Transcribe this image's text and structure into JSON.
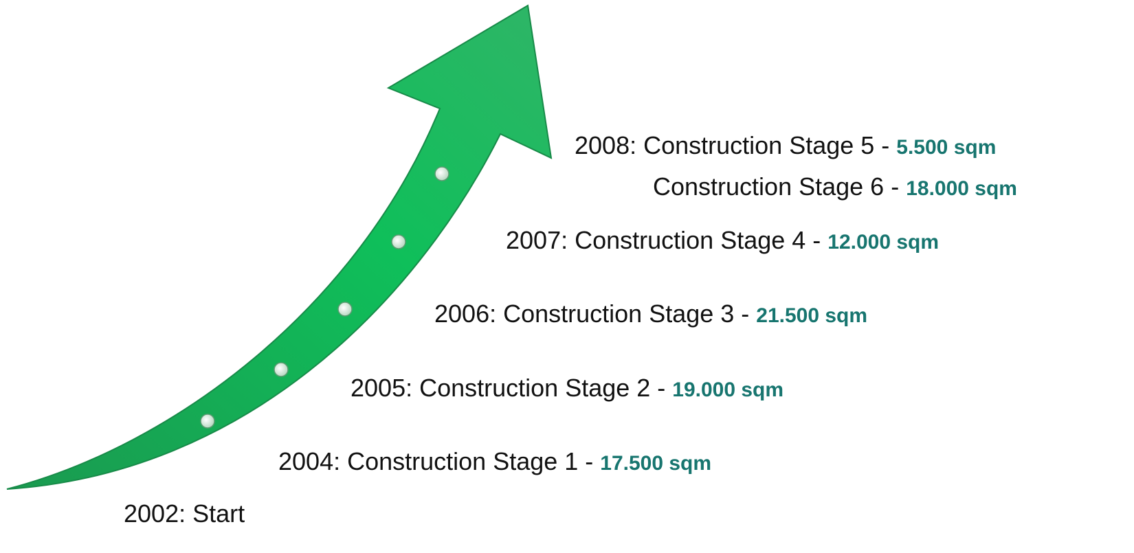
{
  "milestones": [
    {
      "text": "2008: Construction Stage 5 -",
      "area": "5.500 sqm"
    },
    {
      "text": "Construction Stage 6 -",
      "area": "18.000 sqm"
    },
    {
      "text": "2007: Construction Stage 4 -",
      "area": "12.000 sqm"
    },
    {
      "text": "2006: Construction Stage 3 -",
      "area": "21.500 sqm"
    },
    {
      "text": "2005: Construction Stage 2 -",
      "area": "19.000 sqm"
    },
    {
      "text": "2004: Construction Stage 1 -",
      "area": "17.500 sqm"
    },
    {
      "text": "2002: Start"
    }
  ]
}
